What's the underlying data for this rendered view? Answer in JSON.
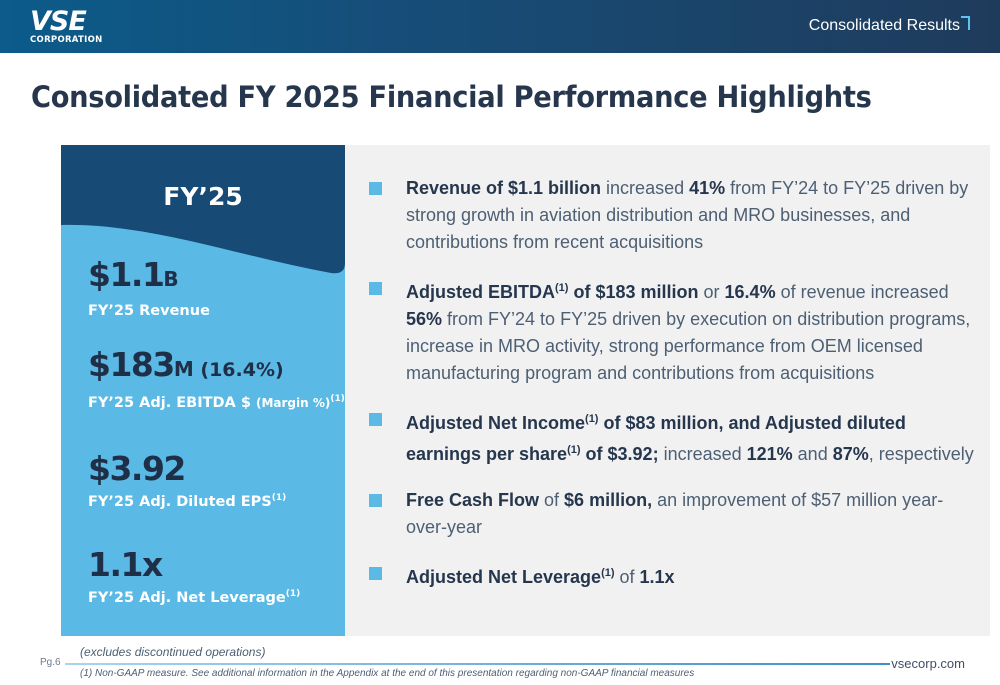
{
  "header": {
    "logo_mark": "VSE",
    "logo_sub": "CORPORATION",
    "section_label": "Consolidated Results",
    "colors": {
      "header_start": "#0c5b8a",
      "header_end": "#1f3b5c",
      "accent": "#5fc3ef"
    }
  },
  "title": "Consolidated FY 2025 Financial Performance Highlights",
  "left_panel": {
    "period": "FY’25",
    "colors": {
      "panel": "#5ab9e5",
      "tab": "#174a74",
      "value_text": "#1e2f47"
    },
    "metrics": [
      {
        "value": "$1.1",
        "unit": "B",
        "extra": "",
        "label": "FY’25 Revenue",
        "label_small": "",
        "sup": ""
      },
      {
        "value": "$183",
        "unit": "M",
        "extra": " (16.4%)",
        "label": "FY’25 Adj. EBITDA $ ",
        "label_small": "(Margin %)",
        "sup": "(1)"
      },
      {
        "value": "$3.92",
        "unit": "",
        "extra": "",
        "label": "FY’25 Adj. Diluted EPS",
        "label_small": "",
        "sup": "(1)"
      },
      {
        "value": "1.1x",
        "unit": "",
        "extra": "",
        "label": "FY’25 Adj. Net Leverage",
        "label_small": "",
        "sup": "(1)"
      }
    ]
  },
  "bullets": [
    {
      "b1": "Revenue of $1.1 billion",
      "t1": " increased ",
      "b2": "41%",
      "t2": " from FY’24 to FY’25 driven by strong growth in aviation distribution and MRO businesses, and contributions from recent acquisitions"
    },
    {
      "b1": "Adjusted EBITDA",
      "sup1": "(1)",
      "b1b": " of $183 million",
      "t1": " or ",
      "b2": "16.4%",
      "t2": " of revenue increased ",
      "b3": "56%",
      "t3": " from FY’24 to FY’25 driven by execution on distribution programs, increase in MRO activity, strong performance from OEM licensed manufacturing program and contributions from acquisitions"
    },
    {
      "b1": "Adjusted Net Income",
      "sup1": "(1)",
      "b1b": " of $83 million, and Adjusted diluted earnings per share",
      "sup2": "(1)",
      "b1c": " of $3.92;",
      "t1": " increased ",
      "b2": "121%",
      "t2": " and ",
      "b3": "87%",
      "t3": ", respectively"
    },
    {
      "b1": "Free Cash Flow",
      "t1": " of ",
      "b2": "$6 million,",
      "t2": " an improvement of $57 million year-over-year"
    },
    {
      "b1": "Adjusted Net Leverage",
      "sup1": "(1)",
      "t1": " of ",
      "b2": "1.1x"
    }
  ],
  "footer": {
    "note_excludes": "(excludes discontinued operations)",
    "page": "Pg.6",
    "website": "vsecorp.com",
    "note_non_gaap": "(1) Non-GAAP measure. See additional information in the Appendix at the end of this presentation regarding non-GAAP financial measures"
  }
}
